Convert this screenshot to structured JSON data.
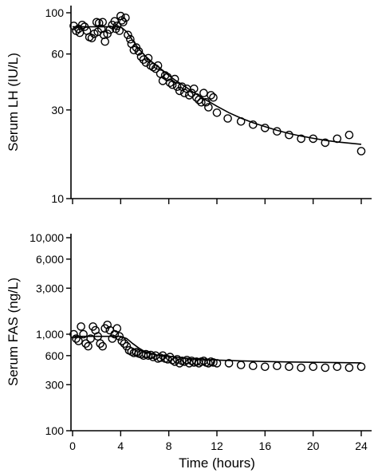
{
  "chart_data": [
    {
      "type": "scatter",
      "ylabel": "Serum LH  (IU/L)",
      "xlabel": "",
      "yscale": "log",
      "ylim": [
        10,
        100
      ],
      "xlim": [
        0,
        24
      ],
      "xticks": [
        0,
        4,
        8,
        12,
        16,
        20,
        24
      ],
      "show_xtick_labels": false,
      "yticks": [
        10,
        30,
        60,
        100
      ],
      "ytick_labels": [
        "10",
        "30",
        "60",
        "100"
      ],
      "series": [
        {
          "kind": "points",
          "x": [
            0.1,
            0.3,
            0.5,
            0.6,
            0.8,
            1.0,
            1.2,
            1.4,
            1.6,
            1.8,
            2.0,
            2.1,
            2.2,
            2.4,
            2.5,
            2.6,
            2.7,
            2.9,
            3.1,
            3.3,
            3.5,
            3.6,
            3.7,
            3.9,
            4.0,
            4.1,
            4.2,
            4.4,
            4.6,
            4.8,
            4.9,
            5.1,
            5.3,
            5.5,
            5.7,
            5.9,
            6.1,
            6.3,
            6.5,
            6.7,
            6.9,
            7.1,
            7.3,
            7.5,
            7.7,
            7.9,
            8.1,
            8.3,
            8.5,
            8.7,
            8.9,
            9.1,
            9.3,
            9.5,
            9.7,
            9.9,
            10.1,
            10.3,
            10.5,
            10.7,
            10.9,
            11.1,
            11.3,
            11.5,
            11.7,
            12.0,
            12.9,
            14.0,
            15.0,
            16.0,
            17.0,
            18.0,
            19.0,
            20.0,
            21.0,
            22.0,
            23.0,
            24.0
          ],
          "y": [
            85,
            80,
            82,
            78,
            86,
            84,
            80,
            74,
            73,
            77,
            89,
            79,
            88,
            82,
            89,
            76,
            70,
            77,
            81,
            86,
            90,
            82,
            85,
            80,
            96,
            91,
            89,
            94,
            76,
            72,
            68,
            63,
            65,
            62,
            58,
            56,
            54,
            57,
            52,
            51,
            50,
            52,
            47,
            43,
            46,
            45,
            42,
            41,
            44,
            40,
            38,
            40,
            37,
            39,
            36,
            37,
            39,
            35,
            34,
            33,
            37,
            33,
            31,
            36,
            35,
            29,
            27,
            26,
            25,
            24,
            23,
            22,
            21,
            21,
            20,
            21,
            22,
            18
          ]
        },
        {
          "kind": "fit",
          "x": [
            0,
            0.5,
            1,
            1.5,
            2,
            2.5,
            3,
            3.5,
            4,
            4.5,
            5,
            5.5,
            6,
            6.5,
            7,
            7.5,
            8,
            8.5,
            9,
            9.5,
            10,
            10.5,
            11,
            11.5,
            12,
            13,
            14,
            15,
            16,
            17,
            18,
            19,
            20,
            21,
            22,
            23,
            24
          ],
          "y": [
            84,
            84,
            84,
            84,
            84,
            84,
            84,
            84,
            84,
            79,
            71,
            64,
            59,
            55,
            52,
            49,
            46,
            43.5,
            41.5,
            39.5,
            37.5,
            35.8,
            34.2,
            32.8,
            31.4,
            29,
            27.1,
            25.6,
            24.4,
            23.3,
            22.4,
            21.7,
            21.1,
            20.6,
            20.2,
            19.9,
            19.6
          ]
        }
      ]
    },
    {
      "type": "scatter",
      "ylabel": "Serum FAS  (ng/L)",
      "xlabel": "Time  (hours)",
      "yscale": "log",
      "ylim": [
        100,
        10000
      ],
      "xlim": [
        0,
        24
      ],
      "xticks": [
        0,
        4,
        8,
        12,
        16,
        20,
        24
      ],
      "xtick_labels": [
        "0",
        "4",
        "8",
        "12",
        "16",
        "20",
        "24"
      ],
      "yticks": [
        100,
        300,
        600,
        1000,
        3000,
        6000,
        10000
      ],
      "ytick_labels": [
        "100",
        "300",
        "600",
        "1,000",
        "3,000",
        "6,000",
        "10,000"
      ],
      "series": [
        {
          "kind": "points",
          "x": [
            0.1,
            0.3,
            0.5,
            0.7,
            0.9,
            1.1,
            1.3,
            1.5,
            1.7,
            1.9,
            2.1,
            2.3,
            2.5,
            2.7,
            2.9,
            3.1,
            3.3,
            3.5,
            3.7,
            3.9,
            4.1,
            4.3,
            4.5,
            4.7,
            4.9,
            5.1,
            5.3,
            5.5,
            5.7,
            5.9,
            6.1,
            6.3,
            6.5,
            6.7,
            6.9,
            7.1,
            7.3,
            7.5,
            7.7,
            7.9,
            8.1,
            8.3,
            8.5,
            8.7,
            8.9,
            9.1,
            9.3,
            9.5,
            9.7,
            9.9,
            10.1,
            10.3,
            10.5,
            10.7,
            10.9,
            11.1,
            11.3,
            11.5,
            11.7,
            12.0,
            13.0,
            14.0,
            15.0,
            16.0,
            17.0,
            18.0,
            19.0,
            20.0,
            21.0,
            22.0,
            23.0,
            24.0
          ],
          "y": [
            1000,
            900,
            850,
            1200,
            1000,
            800,
            750,
            900,
            1200,
            1100,
            950,
            800,
            750,
            1150,
            1250,
            1100,
            900,
            1000,
            1150,
            950,
            850,
            800,
            750,
            680,
            660,
            640,
            650,
            630,
            620,
            600,
            620,
            600,
            610,
            580,
            600,
            560,
            570,
            600,
            560,
            550,
            580,
            540,
            520,
            550,
            500,
            530,
            520,
            540,
            500,
            530,
            510,
            520,
            500,
            520,
            530,
            510,
            500,
            520,
            510,
            500,
            500,
            480,
            470,
            460,
            470,
            460,
            450,
            460,
            450,
            460,
            450,
            460
          ]
        },
        {
          "kind": "fit",
          "x": [
            0,
            1,
            2,
            3,
            4,
            4.5,
            5,
            5.5,
            6,
            6.5,
            7,
            8,
            9,
            10,
            12,
            14,
            16,
            18,
            20,
            22,
            24
          ],
          "y": [
            950,
            950,
            950,
            950,
            950,
            900,
            800,
            720,
            660,
            630,
            610,
            590,
            570,
            555,
            540,
            530,
            522,
            516,
            512,
            508,
            505
          ]
        }
      ]
    }
  ]
}
